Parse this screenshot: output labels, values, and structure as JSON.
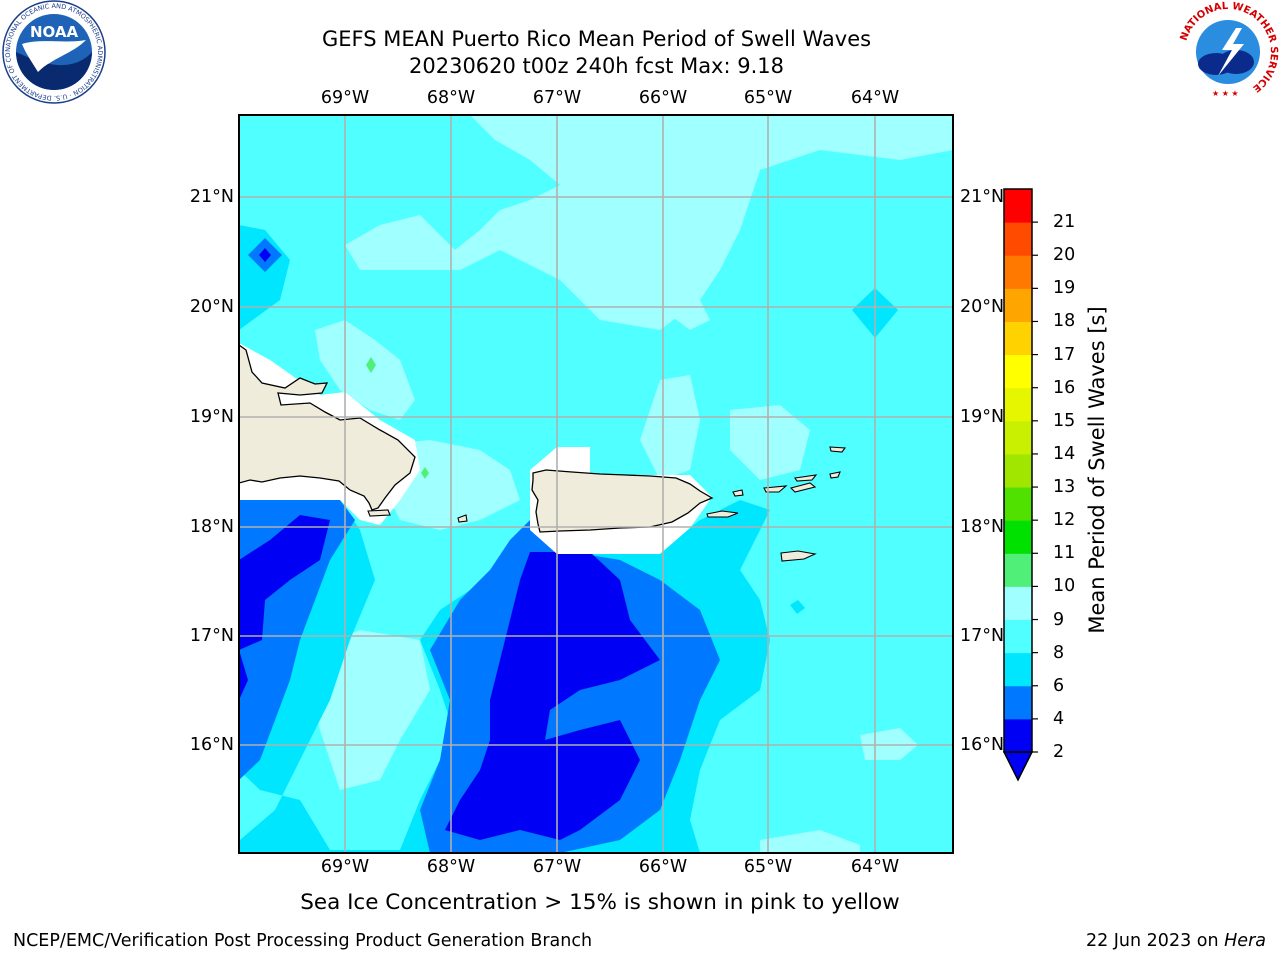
{
  "title_line1": "GEFS MEAN Puerto Rico Mean Period of Swell Waves",
  "title_line2": "20230620 t00z 240h fcst   Max: 9.18",
  "x_ticks": [
    "69°W",
    "68°W",
    "67°W",
    "66°W",
    "65°W",
    "64°W"
  ],
  "y_ticks": [
    "21°N",
    "20°N",
    "19°N",
    "18°N",
    "17°N",
    "16°N"
  ],
  "colorbar": {
    "label": "Mean Period of Swell Waves [s]",
    "ticks": [
      "2",
      "4",
      "6",
      "8",
      "9",
      "10",
      "11",
      "12",
      "13",
      "14",
      "15",
      "16",
      "17",
      "18",
      "19",
      "20",
      "21"
    ],
    "colors": [
      "#0000f5",
      "#0078ff",
      "#00e6ff",
      "#50ffff",
      "#a0ffff",
      "#50f078",
      "#00e100",
      "#50e100",
      "#a0e600",
      "#c8f000",
      "#e6f500",
      "#ffff00",
      "#ffd200",
      "#ffa500",
      "#ff7800",
      "#ff4b00",
      "#ff0000"
    ]
  },
  "note": "Sea Ice Concentration > 15% is shown in pink to yellow",
  "footer_left": "NCEP/EMC/Verification Post Processing Product Generation Branch",
  "footer_right_date": "22 Jun 2023 on ",
  "footer_right_machine": "Hera",
  "logos": {
    "left": "noaa-logo",
    "right": "nws-logo"
  },
  "logo_text": {
    "noaa": "NOAA",
    "noaa_ring": "NATIONAL OCEANIC AND ATMOSPHERIC ADMINISTRATION · U.S. DEPARTMENT OF COMMERCE",
    "nws_ring": "NATIONAL WEATHER SERVICE"
  }
}
